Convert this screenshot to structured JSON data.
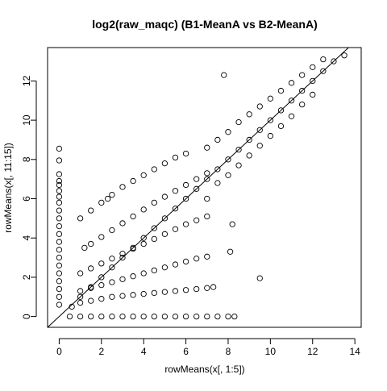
{
  "chart_data": {
    "type": "scatter",
    "title": "log2(raw_maqc) (B1-MeanA vs B2-MeanA)",
    "xlabel": "rowMeans(x[, 1:5])",
    "ylabel": "rowMeans(x[, 11:15])",
    "xlim": [
      -0.55,
      14.3
    ],
    "ylim": [
      -0.55,
      13.7
    ],
    "xticks": [
      0,
      2,
      4,
      6,
      8,
      10,
      12,
      14
    ],
    "yticks": [
      0,
      2,
      4,
      6,
      8,
      10,
      12
    ],
    "xtick_labels": [
      "0",
      "2",
      "4",
      "6",
      "8",
      "10",
      "12",
      "14"
    ],
    "ytick_labels": [
      "0",
      "2",
      "4",
      "6",
      "8",
      "10",
      "12"
    ],
    "grid": false,
    "marker": "open-circle",
    "reference_line": {
      "type": "identity",
      "intercept": 0,
      "slope": 1
    },
    "series": [
      {
        "values": [
          [
            0,
            8.55
          ],
          [
            0,
            7.95
          ],
          [
            0,
            7.25
          ],
          [
            0,
            6.9
          ],
          [
            0,
            6.7
          ],
          [
            0,
            6.4
          ],
          [
            0,
            6.1
          ],
          [
            0,
            5.8
          ],
          [
            0,
            5.4
          ],
          [
            0,
            5.0
          ],
          [
            0,
            4.6
          ],
          [
            0,
            4.2
          ],
          [
            0,
            3.8
          ],
          [
            0,
            3.4
          ],
          [
            0,
            3.0
          ],
          [
            0,
            2.6
          ],
          [
            0,
            2.2
          ],
          [
            0,
            1.8
          ],
          [
            0,
            1.4
          ],
          [
            0,
            1.0
          ],
          [
            0,
            0.6
          ],
          [
            0.5,
            0
          ],
          [
            1.0,
            0
          ],
          [
            1.5,
            0
          ],
          [
            2.0,
            0
          ],
          [
            2.5,
            0
          ],
          [
            3.0,
            0
          ],
          [
            3.5,
            0
          ],
          [
            4.0,
            0
          ],
          [
            4.5,
            0
          ],
          [
            5.0,
            0
          ],
          [
            5.5,
            0
          ],
          [
            6.0,
            0
          ],
          [
            6.5,
            0
          ],
          [
            7.0,
            0
          ],
          [
            7.5,
            0
          ],
          [
            8.0,
            0
          ],
          [
            8.3,
            0
          ],
          [
            0.6,
            0.5
          ],
          [
            1.0,
            0.7
          ],
          [
            1.5,
            0.8
          ],
          [
            2.0,
            0.9
          ],
          [
            2.5,
            1.0
          ],
          [
            3.0,
            1.05
          ],
          [
            3.5,
            1.1
          ],
          [
            4.0,
            1.15
          ],
          [
            4.5,
            1.2
          ],
          [
            5.0,
            1.25
          ],
          [
            5.5,
            1.3
          ],
          [
            6.0,
            1.35
          ],
          [
            6.5,
            1.4
          ],
          [
            7.0,
            1.45
          ],
          [
            7.3,
            1.5
          ],
          [
            1.0,
            1.3
          ],
          [
            1.5,
            1.45
          ],
          [
            2.0,
            1.6
          ],
          [
            2.5,
            1.75
          ],
          [
            3.0,
            1.9
          ],
          [
            3.5,
            2.05
          ],
          [
            4.0,
            2.2
          ],
          [
            4.5,
            2.35
          ],
          [
            5.0,
            2.5
          ],
          [
            5.5,
            2.65
          ],
          [
            6.0,
            2.8
          ],
          [
            6.5,
            2.95
          ],
          [
            7.0,
            3.05
          ],
          [
            1.0,
            2.2
          ],
          [
            1.5,
            2.45
          ],
          [
            2.0,
            2.7
          ],
          [
            2.5,
            2.95
          ],
          [
            3.0,
            3.2
          ],
          [
            3.5,
            3.45
          ],
          [
            4.0,
            3.7
          ],
          [
            4.5,
            3.95
          ],
          [
            5.0,
            4.2
          ],
          [
            5.5,
            4.45
          ],
          [
            6.0,
            4.7
          ],
          [
            6.5,
            4.9
          ],
          [
            7.0,
            5.1
          ],
          [
            1.2,
            3.5
          ],
          [
            1.5,
            3.7
          ],
          [
            2.0,
            4.05
          ],
          [
            2.5,
            4.4
          ],
          [
            3.0,
            4.75
          ],
          [
            3.5,
            5.1
          ],
          [
            4.0,
            5.45
          ],
          [
            4.5,
            5.8
          ],
          [
            5.0,
            6.1
          ],
          [
            5.5,
            6.4
          ],
          [
            6.0,
            6.7
          ],
          [
            6.5,
            7.0
          ],
          [
            7.0,
            7.3
          ],
          [
            1.0,
            5.0
          ],
          [
            1.5,
            5.4
          ],
          [
            2.0,
            5.8
          ],
          [
            2.5,
            6.2
          ],
          [
            3.0,
            6.6
          ],
          [
            3.5,
            6.9
          ],
          [
            4.0,
            7.2
          ],
          [
            4.5,
            7.5
          ],
          [
            5.0,
            7.8
          ],
          [
            5.5,
            8.1
          ],
          [
            6.0,
            8.3
          ],
          [
            1.0,
            1.0
          ],
          [
            1.5,
            1.5
          ],
          [
            2.0,
            2.0
          ],
          [
            2.5,
            2.5
          ],
          [
            3.0,
            3.0
          ],
          [
            3.5,
            3.5
          ],
          [
            4.0,
            4.0
          ],
          [
            4.5,
            4.5
          ],
          [
            5.0,
            5.0
          ],
          [
            5.5,
            5.5
          ],
          [
            6.0,
            6.0
          ],
          [
            6.5,
            6.5
          ],
          [
            7.0,
            7.0
          ],
          [
            7.5,
            7.5
          ],
          [
            8.0,
            8.0
          ],
          [
            8.5,
            8.5
          ],
          [
            9.0,
            9.0
          ],
          [
            9.5,
            9.5
          ],
          [
            10.0,
            10.0
          ],
          [
            10.5,
            10.5
          ],
          [
            11.0,
            11.0
          ],
          [
            11.5,
            11.5
          ],
          [
            12.0,
            12.0
          ],
          [
            12.5,
            12.5
          ],
          [
            13.0,
            13.0
          ],
          [
            13.5,
            13.3
          ],
          [
            7.0,
            8.6
          ],
          [
            7.5,
            9.0
          ],
          [
            8.0,
            9.4
          ],
          [
            8.5,
            9.9
          ],
          [
            9.0,
            10.3
          ],
          [
            9.5,
            10.7
          ],
          [
            10.0,
            11.1
          ],
          [
            10.5,
            11.5
          ],
          [
            11.0,
            11.9
          ],
          [
            11.5,
            12.3
          ],
          [
            12.0,
            12.7
          ],
          [
            12.5,
            13.1
          ],
          [
            7.0,
            6.0
          ],
          [
            7.5,
            6.8
          ],
          [
            8.0,
            7.2
          ],
          [
            8.5,
            7.7
          ],
          [
            9.0,
            8.2
          ],
          [
            9.5,
            8.7
          ],
          [
            10.0,
            9.2
          ],
          [
            10.5,
            9.7
          ],
          [
            11.0,
            10.2
          ],
          [
            11.5,
            10.8
          ],
          [
            12.0,
            11.3
          ],
          [
            7.8,
            12.3
          ],
          [
            8.2,
            4.7
          ],
          [
            8.1,
            3.3
          ],
          [
            9.5,
            1.95
          ],
          [
            2.3,
            6.0
          ]
        ]
      }
    ]
  }
}
